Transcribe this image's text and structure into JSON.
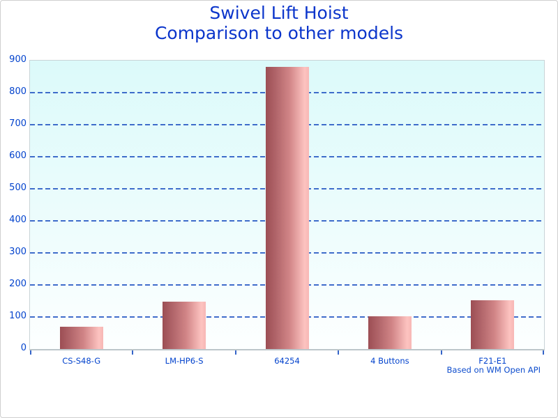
{
  "title": {
    "line1": "Swivel Lift Hoist",
    "line2": "Comparison to other models",
    "color": "#0b35cb"
  },
  "footnote": "Based on WM Open API",
  "chart_data": {
    "type": "bar",
    "title": "Swivel Lift Hoist — Comparison to other models",
    "categories": [
      "CS-S48-G",
      "LM-HP6-S",
      "64254",
      "4 Buttons",
      "F21-E1"
    ],
    "values": [
      70,
      148,
      880,
      103,
      152
    ],
    "xlabel": "",
    "ylabel": "",
    "ylim": [
      0,
      900
    ],
    "ytick_interval": 100,
    "yticks": [
      0,
      100,
      200,
      300,
      400,
      500,
      600,
      700,
      800,
      900
    ],
    "grid": "horizontal-dashed",
    "legend_position": "none",
    "annotation": "Based on WM Open API",
    "colors": {
      "title_text": "#0b35cb",
      "axis_text": "#0343cd",
      "gridline": "#3564c8",
      "plot_bg_top": "#dcfafa",
      "plot_bg_bottom": "#fdffff",
      "bar_dark": "#9c4e54",
      "bar_light": "#fdc3c0",
      "plot_border": "#c9d3d7"
    }
  }
}
